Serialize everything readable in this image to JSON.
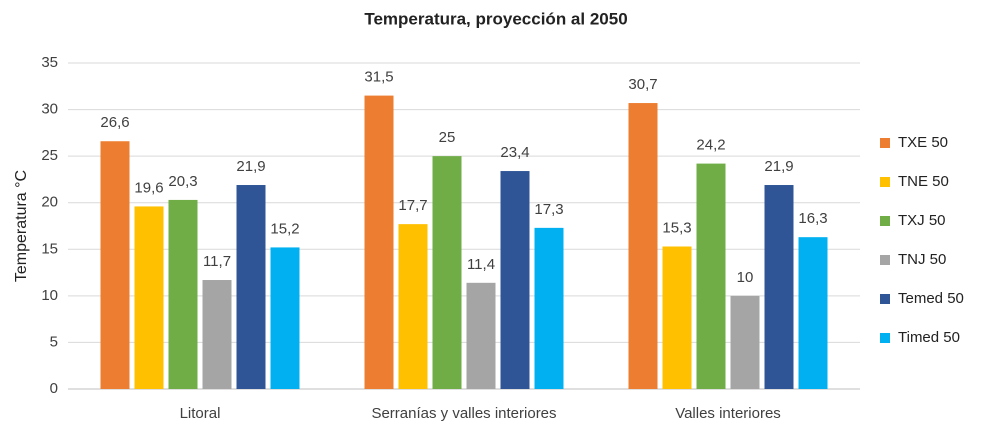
{
  "chart_data": {
    "type": "bar",
    "title": "Temperatura, proyección al 2050",
    "y_label": "Temperatura °C",
    "categories": [
      "Litoral",
      "Serranías y valles interiores",
      "Valles interiores"
    ],
    "series": [
      {
        "name": "TXE 50",
        "color": "#ED7D31",
        "values": [
          26.6,
          31.5,
          30.7
        ],
        "value_labels": [
          "26,6",
          "31,5",
          "30,7"
        ]
      },
      {
        "name": "TNE 50",
        "color": "#FFC000",
        "values": [
          19.6,
          17.7,
          15.3
        ],
        "value_labels": [
          "19,6",
          "17,7",
          "15,3"
        ]
      },
      {
        "name": "TXJ 50",
        "color": "#70AD47",
        "values": [
          20.3,
          25,
          24.2
        ],
        "value_labels": [
          "20,3",
          "25",
          "24,2"
        ]
      },
      {
        "name": "TNJ 50",
        "color": "#A5A5A5",
        "values": [
          11.7,
          11.4,
          10
        ],
        "value_labels": [
          "11,7",
          "11,4",
          "10"
        ]
      },
      {
        "name": "Temed 50",
        "color": "#2F5597",
        "values": [
          21.9,
          23.4,
          21.9
        ],
        "value_labels": [
          "21,9",
          "23,4",
          "21,9"
        ]
      },
      {
        "name": "Timed 50",
        "color": "#00B0F0",
        "values": [
          15.2,
          17.3,
          16.3
        ],
        "value_labels": [
          "15,2",
          "17,3",
          "16,3"
        ]
      }
    ],
    "ylim": [
      0,
      35
    ],
    "yticks": [
      0,
      5,
      10,
      15,
      20,
      25,
      30,
      35
    ],
    "grid": true,
    "legend": "right"
  }
}
